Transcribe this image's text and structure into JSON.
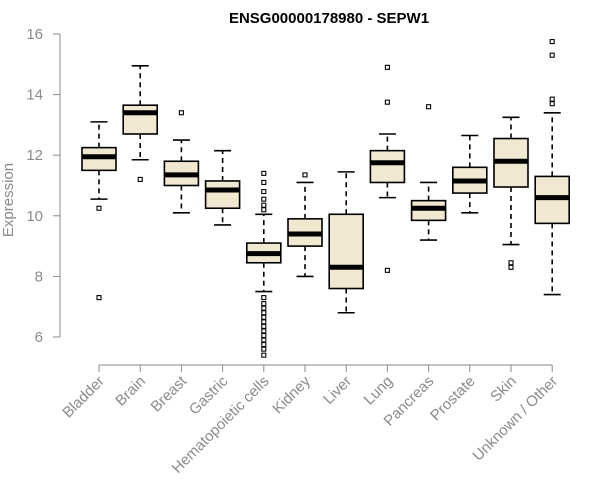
{
  "chart_data": {
    "type": "boxplot",
    "title": "ENSG00000178980 - SEPW1",
    "xlabel": "",
    "ylabel": "Expression",
    "ylim": [
      5,
      16.3
    ],
    "yticks": [
      6,
      8,
      10,
      12,
      14,
      16
    ],
    "box_fill": "#f0e8d0",
    "categories": [
      "Bladder",
      "Brain",
      "Breast",
      "Gastric",
      "Hematopoietic cells",
      "Kidney",
      "Liver",
      "Lung",
      "Pancreas",
      "Prostate",
      "Skin",
      "Unknown / Other"
    ],
    "boxes": [
      {
        "category": "Bladder",
        "whisker_low": 10.55,
        "q1": 11.5,
        "median": 11.95,
        "q3": 12.25,
        "whisker_high": 13.1,
        "outliers": [
          10.25,
          7.3
        ]
      },
      {
        "category": "Brain",
        "whisker_low": 11.85,
        "q1": 12.7,
        "median": 13.4,
        "q3": 13.65,
        "whisker_high": 14.95,
        "outliers": [
          11.2
        ]
      },
      {
        "category": "Breast",
        "whisker_low": 10.1,
        "q1": 11.0,
        "median": 11.35,
        "q3": 11.8,
        "whisker_high": 12.5,
        "outliers": [
          13.4
        ]
      },
      {
        "category": "Gastric",
        "whisker_low": 9.7,
        "q1": 10.25,
        "median": 10.85,
        "q3": 11.15,
        "whisker_high": 12.15,
        "outliers": []
      },
      {
        "category": "Hematopoietic cells",
        "whisker_low": 7.5,
        "q1": 8.45,
        "median": 8.75,
        "q3": 9.1,
        "whisker_high": 10.05,
        "outliers": [
          11.4,
          11.1,
          10.8,
          10.55,
          10.35,
          10.2,
          7.3,
          7.1,
          6.95,
          6.8,
          6.65,
          6.5,
          6.35,
          6.2,
          6.05,
          5.9,
          5.75,
          5.6,
          5.4
        ]
      },
      {
        "category": "Kidney",
        "whisker_low": 8.0,
        "q1": 9.0,
        "median": 9.4,
        "q3": 9.9,
        "whisker_high": 11.1,
        "outliers": [
          11.35
        ]
      },
      {
        "category": "Liver",
        "whisker_low": 6.8,
        "q1": 7.6,
        "median": 8.3,
        "q3": 10.05,
        "whisker_high": 11.45,
        "outliers": []
      },
      {
        "category": "Lung",
        "whisker_low": 10.6,
        "q1": 11.1,
        "median": 11.75,
        "q3": 12.15,
        "whisker_high": 12.7,
        "outliers": [
          14.9,
          13.75,
          8.2
        ]
      },
      {
        "category": "Pancreas",
        "whisker_low": 9.2,
        "q1": 9.85,
        "median": 10.25,
        "q3": 10.5,
        "whisker_high": 11.1,
        "outliers": [
          13.6
        ]
      },
      {
        "category": "Prostate",
        "whisker_low": 10.1,
        "q1": 10.75,
        "median": 11.15,
        "q3": 11.6,
        "whisker_high": 12.65,
        "outliers": []
      },
      {
        "category": "Skin",
        "whisker_low": 9.05,
        "q1": 10.95,
        "median": 11.8,
        "q3": 12.55,
        "whisker_high": 13.25,
        "outliers": [
          8.45,
          8.3
        ]
      },
      {
        "category": "Unknown / Other",
        "whisker_low": 7.4,
        "q1": 9.75,
        "median": 10.6,
        "q3": 11.3,
        "whisker_high": 13.4,
        "outliers": [
          15.75,
          15.3,
          13.85,
          13.7
        ]
      }
    ]
  }
}
